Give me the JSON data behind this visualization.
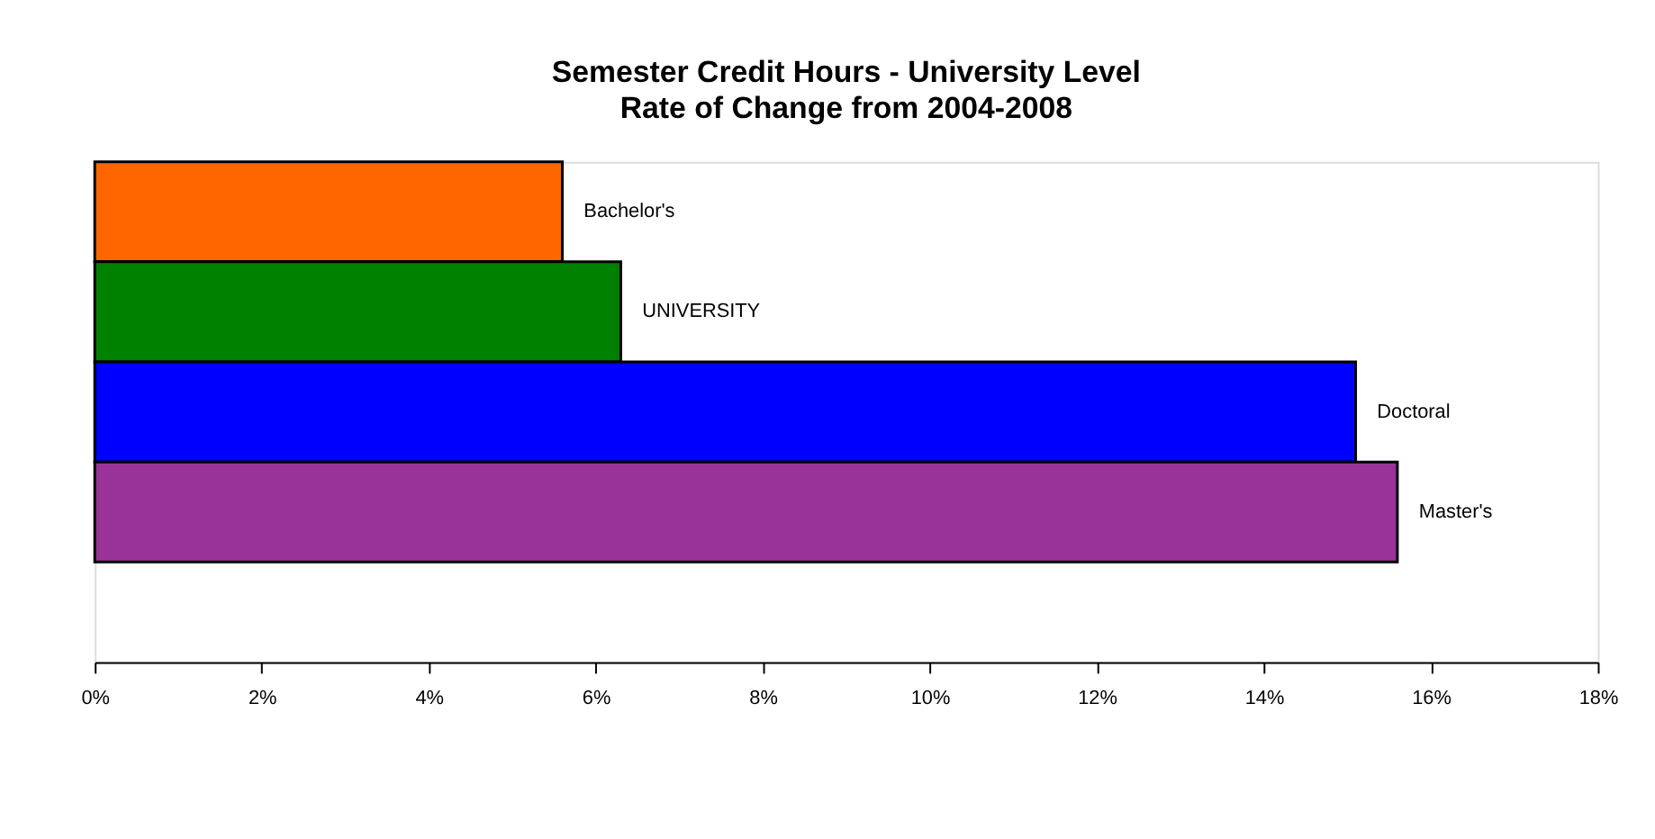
{
  "chart_data": {
    "type": "bar",
    "orientation": "horizontal",
    "title": "Semester Credit Hours - University Level",
    "subtitle": "Rate of Change from 2004-2008",
    "categories": [
      "Bachelor's",
      "UNIVERSITY",
      "Doctoral",
      "Master's"
    ],
    "values": [
      5.6,
      6.3,
      15.1,
      15.6
    ],
    "colors": [
      "#ff6600",
      "#008000",
      "#0000ff",
      "#993399"
    ],
    "xlim": [
      0,
      18
    ],
    "xticks": [
      {
        "value": 0,
        "label": "0%"
      },
      {
        "value": 2,
        "label": "2%"
      },
      {
        "value": 4,
        "label": "4%"
      },
      {
        "value": 6,
        "label": "6%"
      },
      {
        "value": 8,
        "label": "8%"
      },
      {
        "value": 10,
        "label": "10%"
      },
      {
        "value": 12,
        "label": "12%"
      },
      {
        "value": 14,
        "label": "14%"
      },
      {
        "value": 16,
        "label": "16%"
      },
      {
        "value": 18,
        "label": "18%"
      }
    ],
    "tick_labels": "x",
    "grid": false
  }
}
